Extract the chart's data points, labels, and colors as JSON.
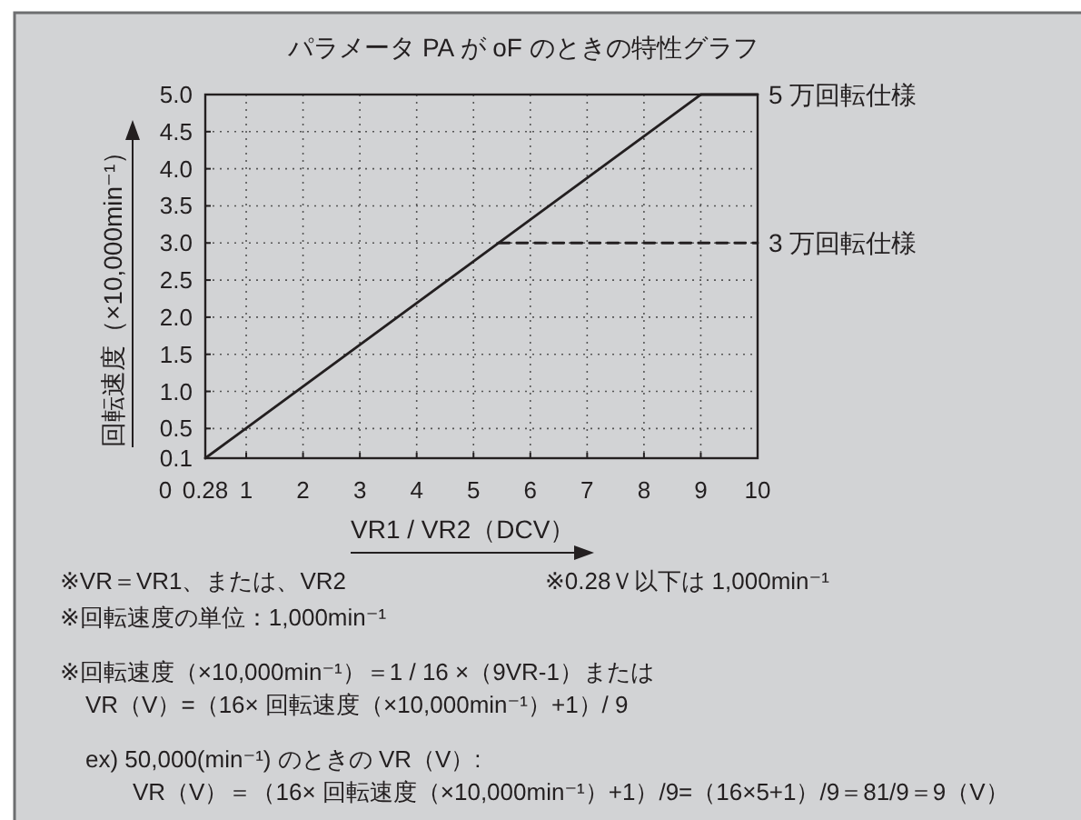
{
  "chart_data": {
    "type": "line",
    "title": "パラメータ PA が oF のときの特性グラフ",
    "xlabel": "VR1 / VR2（DCV）",
    "ylabel": "回転速度（×10,000min⁻¹）",
    "xlim": [
      0.28,
      10
    ],
    "xticks": [
      0.28,
      1,
      2,
      3,
      4,
      5,
      6,
      7,
      8,
      9,
      10
    ],
    "ylim": [
      0.1,
      5.0
    ],
    "yticks": [
      0.1,
      0.5,
      {
        "value": 1,
        "label": "1.0"
      },
      1.5,
      {
        "value": 2,
        "label": "2.0"
      },
      2.5,
      {
        "value": 3,
        "label": "3.0"
      },
      3.5,
      {
        "value": 4,
        "label": "4.0"
      },
      4.5,
      {
        "value": 5,
        "label": "5.0"
      }
    ],
    "grid": true,
    "series": [
      {
        "name": "5 万回転仕様",
        "color": "#231f20",
        "line_style": "solid",
        "x": [
          0.28,
          9,
          10
        ],
        "values": [
          0.1,
          5,
          5
        ]
      },
      {
        "name": "3 万回転仕様",
        "color": "#231f20",
        "line_style": "dashed",
        "x": [
          5.44,
          10
        ],
        "values": [
          3,
          3
        ]
      }
    ],
    "annotations": [
      "0",
      "※VR＝VR1、または、VR2",
      "※0.28Ｖ以下は 1,000min⁻¹",
      "※回転速度の単位：1,000min⁻¹",
      "※回転速度（×10,000min⁻¹）＝1 / 16 ×（9VR-1）または",
      "VR（V）=（16× 回転速度（×10,000min⁻¹）+1）/ 9",
      "ex) 50,000(min⁻¹) のときの VR（V）:",
      "VR（V）＝（16× 回転速度（×10,000min⁻¹）+1）/9=（16×5+1）/9＝81/9＝9（V）"
    ]
  }
}
